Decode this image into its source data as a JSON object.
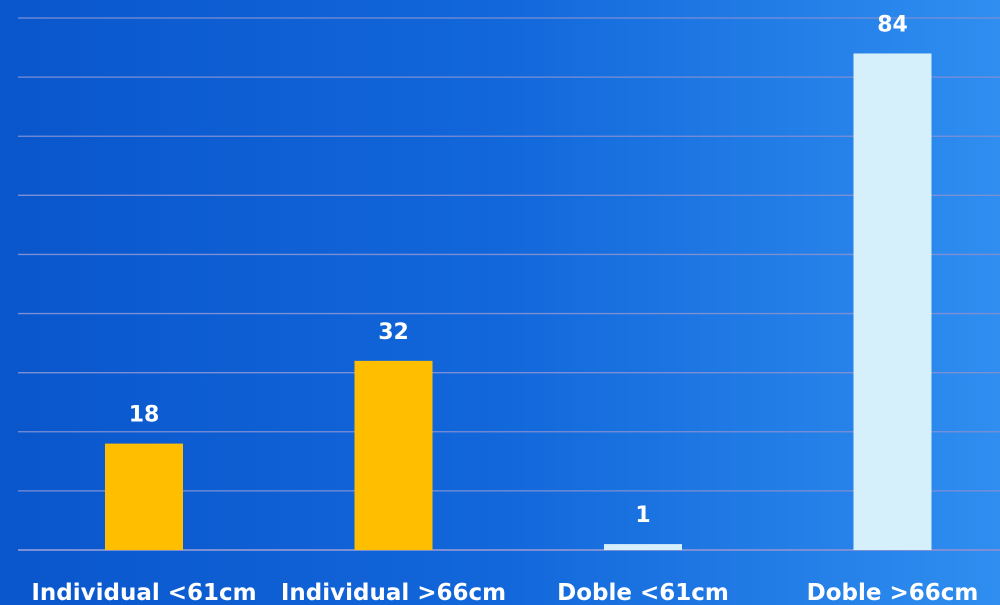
{
  "chart_data": {
    "type": "bar",
    "categories": [
      "Individual <61cm",
      "Individual >66cm",
      "Doble <61cm",
      "Doble >66cm"
    ],
    "values": [
      18,
      32,
      1,
      84
    ],
    "bar_colors": [
      "#ffbe00",
      "#ffbe00",
      "#d6f0fb",
      "#d6f0fb"
    ],
    "title": "",
    "xlabel": "",
    "ylabel": "",
    "ylim": [
      0,
      90
    ],
    "grid": true,
    "gridline_color": "#7b8fd6",
    "legend": "none"
  }
}
